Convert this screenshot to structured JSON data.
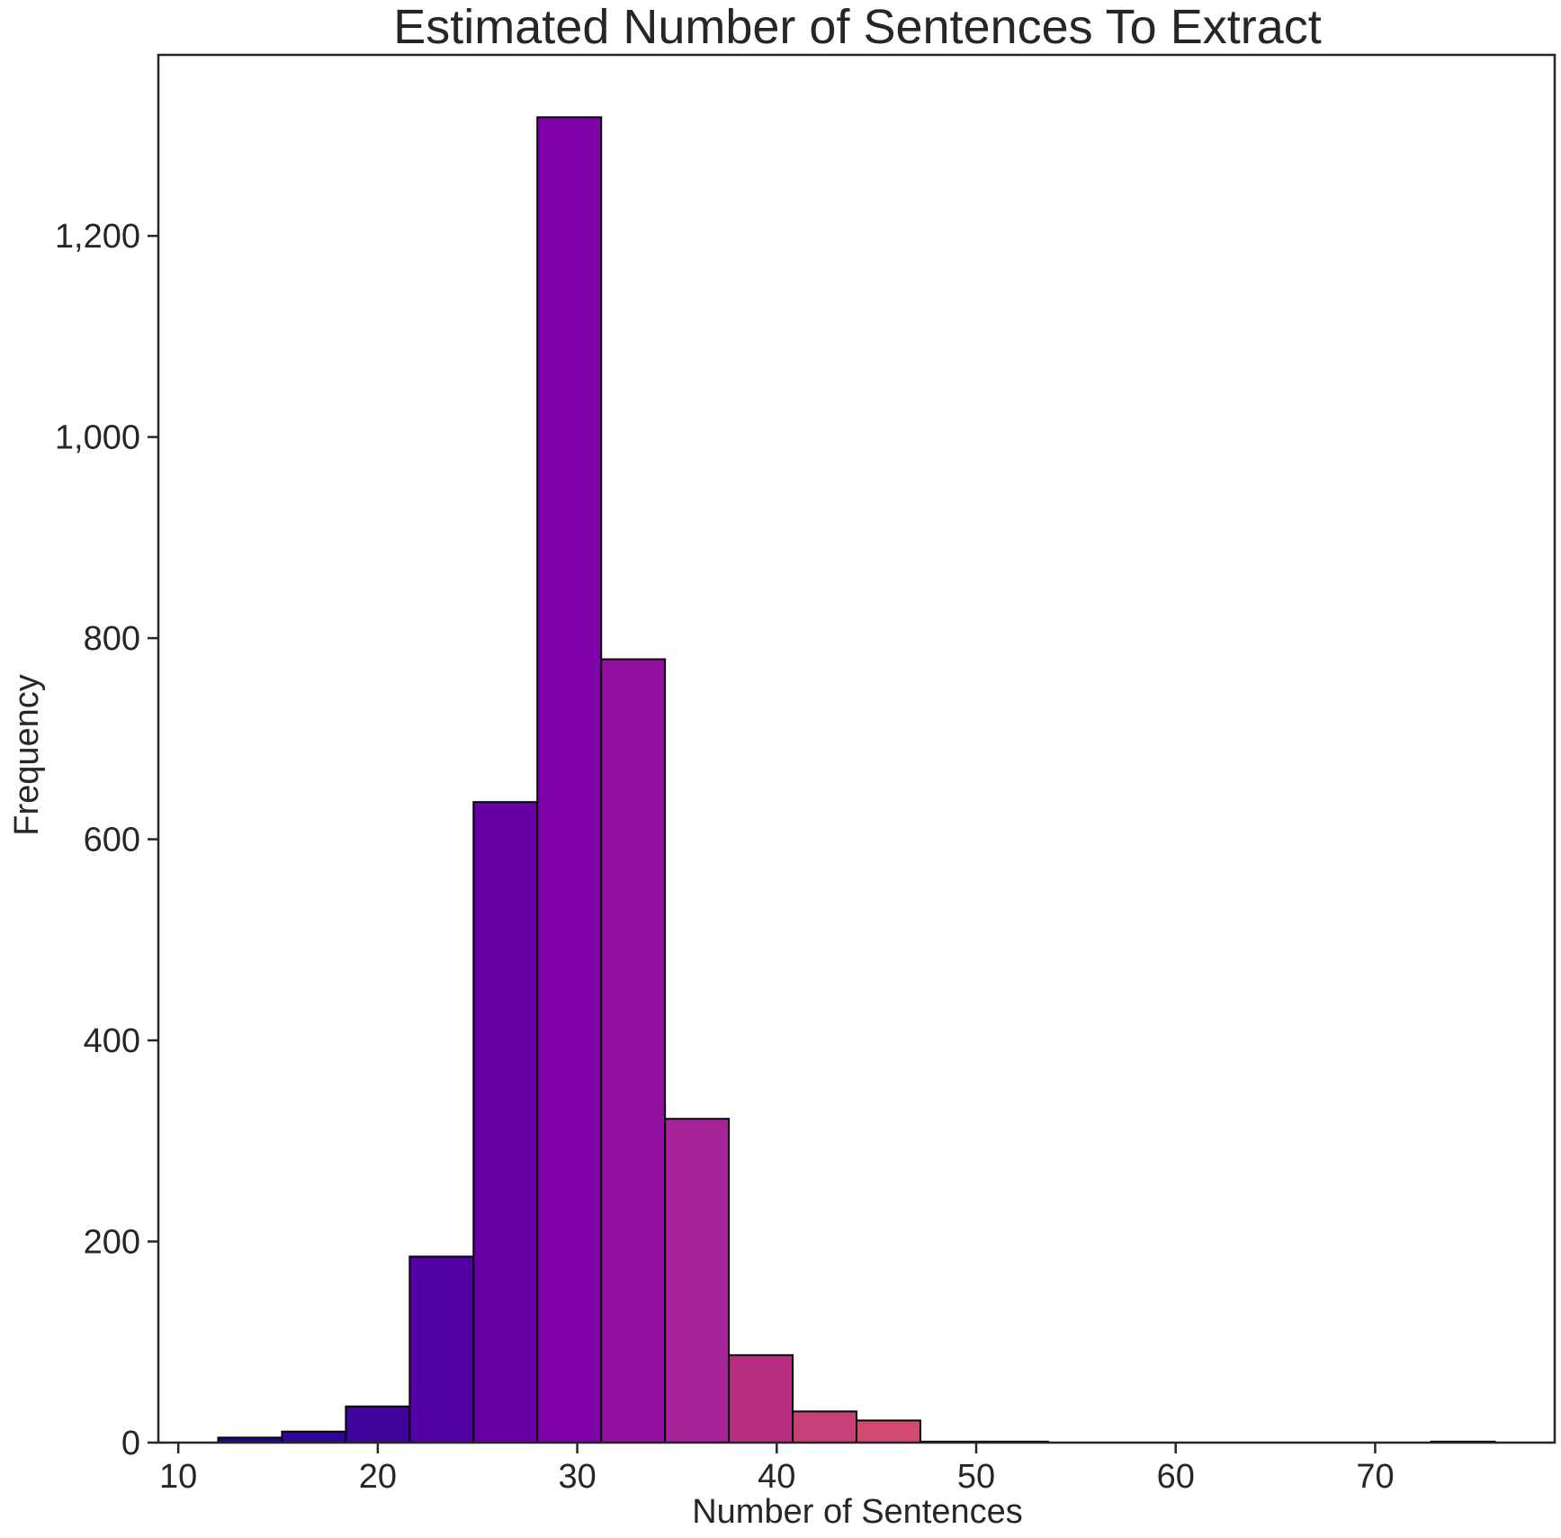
{
  "chart_data": {
    "type": "bar",
    "title": "Estimated Number of Sentences To Extract",
    "xlabel": "Number of Sentences",
    "ylabel": "Frequency",
    "xlim": [
      9,
      79
    ],
    "ylim": [
      0,
      1380
    ],
    "x_ticks": [
      10,
      20,
      30,
      40,
      50,
      60,
      70
    ],
    "x_tick_labels": [
      "10",
      "20",
      "30",
      "40",
      "50",
      "60",
      "70"
    ],
    "y_ticks": [
      0,
      200,
      400,
      600,
      800,
      1000,
      1200
    ],
    "y_tick_labels": [
      "0",
      "200",
      "400",
      "600",
      "800",
      "1,000",
      "1,200"
    ],
    "grid": false,
    "bins": [
      {
        "x0": 12.0,
        "x1": 15.2,
        "value": 5,
        "color": "#1e0690"
      },
      {
        "x0": 15.2,
        "x1": 18.4,
        "value": 11,
        "color": "#2e0596"
      },
      {
        "x0": 18.4,
        "x1": 21.6,
        "value": 36,
        "color": "#40049c"
      },
      {
        "x0": 21.6,
        "x1": 24.8,
        "value": 185,
        "color": "#5401a3"
      },
      {
        "x0": 24.8,
        "x1": 28.0,
        "value": 637,
        "color": "#6900a7"
      },
      {
        "x0": 28.0,
        "x1": 31.2,
        "value": 1318,
        "color": "#7f01a8"
      },
      {
        "x0": 31.2,
        "x1": 34.4,
        "value": 779,
        "color": "#9210a0"
      },
      {
        "x0": 34.4,
        "x1": 37.6,
        "value": 322,
        "color": "#a72197"
      },
      {
        "x0": 37.6,
        "x1": 40.8,
        "value": 87,
        "color": "#b92e82"
      },
      {
        "x0": 40.8,
        "x1": 44.0,
        "value": 31,
        "color": "#c73f78"
      },
      {
        "x0": 44.0,
        "x1": 47.2,
        "value": 22,
        "color": "#d24b6e"
      },
      {
        "x0": 47.2,
        "x1": 50.4,
        "value": 1,
        "color": "#dc5865"
      },
      {
        "x0": 50.4,
        "x1": 53.6,
        "value": 1,
        "color": "#e4665b"
      },
      {
        "x0": 53.6,
        "x1": 56.8,
        "value": 0,
        "color": "#ec7551"
      },
      {
        "x0": 56.8,
        "x1": 60.0,
        "value": 0,
        "color": "#f28349"
      },
      {
        "x0": 60.0,
        "x1": 63.2,
        "value": 0,
        "color": "#f6923f"
      },
      {
        "x0": 63.2,
        "x1": 66.4,
        "value": 0,
        "color": "#f9a334"
      },
      {
        "x0": 66.4,
        "x1": 69.6,
        "value": 0,
        "color": "#fbb42a"
      },
      {
        "x0": 69.6,
        "x1": 72.8,
        "value": 0,
        "color": "#fbc624"
      },
      {
        "x0": 72.8,
        "x1": 76.0,
        "value": 1,
        "color": "#f9d823"
      }
    ]
  }
}
